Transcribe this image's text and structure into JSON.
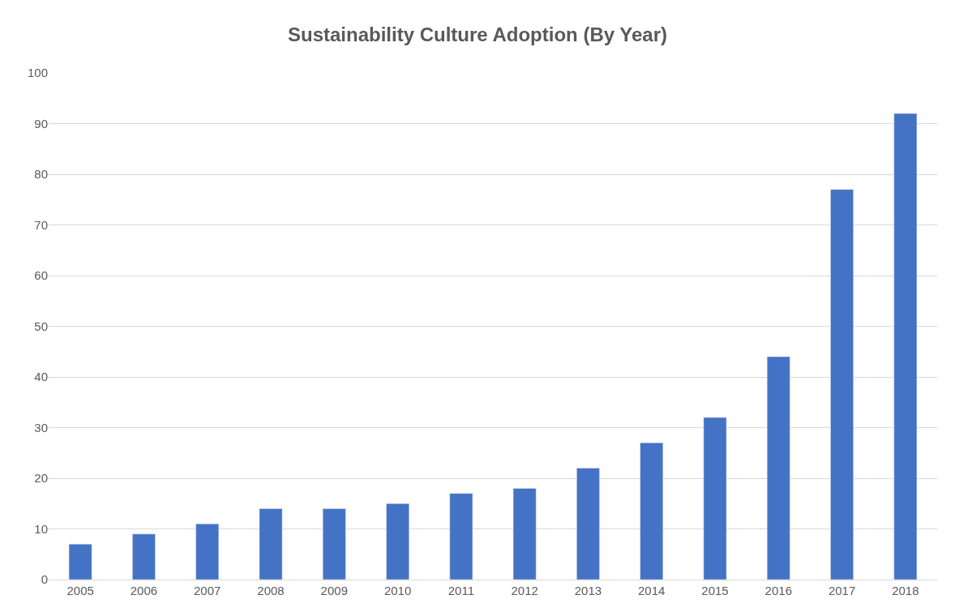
{
  "chart_data": {
    "type": "bar",
    "title": "Sustainability Culture Adoption (By Year)",
    "categories": [
      "2005",
      "2006",
      "2007",
      "2008",
      "2009",
      "2010",
      "2011",
      "2012",
      "2013",
      "2014",
      "2015",
      "2016",
      "2017",
      "2018"
    ],
    "values": [
      7,
      9,
      11,
      14,
      14,
      15,
      17,
      18,
      22,
      27,
      32,
      44,
      77,
      92
    ],
    "color": "#4472c4",
    "ylim": [
      0,
      100
    ],
    "yticks": [
      0,
      10,
      20,
      30,
      40,
      50,
      60,
      70,
      80,
      90,
      100
    ],
    "grid": "y"
  }
}
